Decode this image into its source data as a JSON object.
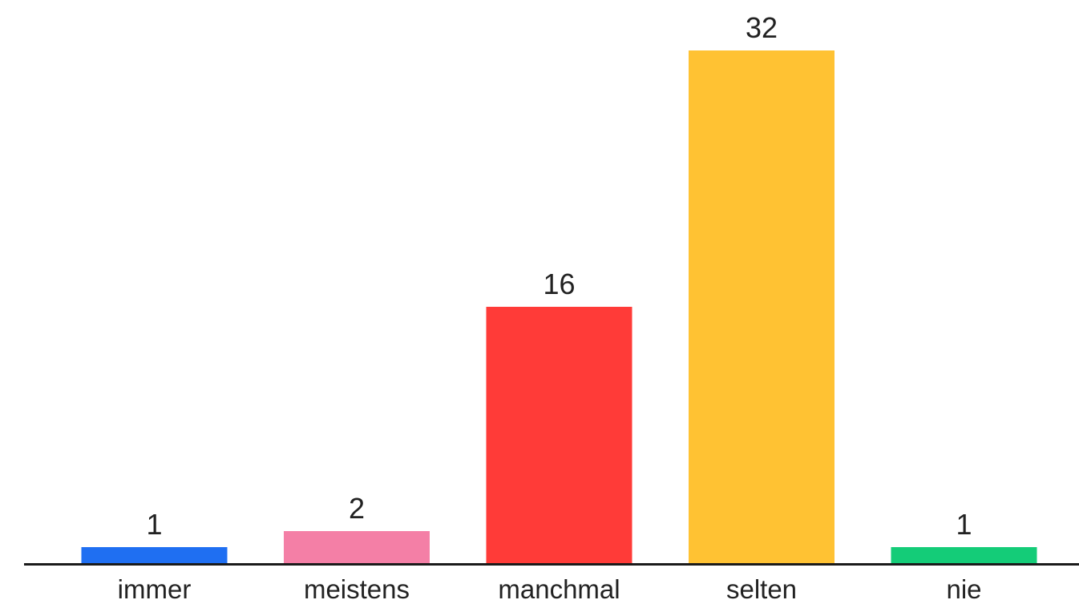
{
  "chart_data": {
    "type": "bar",
    "categories": [
      "immer",
      "meistens",
      "manchmal",
      "selten",
      "nie"
    ],
    "values": [
      1,
      2,
      16,
      32,
      1
    ],
    "data_labels": [
      "1",
      "2",
      "16",
      "32",
      "1"
    ],
    "colors": [
      "#1F6FF2",
      "#F47FA6",
      "#FF3B38",
      "#FFC233",
      "#14CC78"
    ],
    "axis_color": "#1a1a1a",
    "grid": false,
    "legend": "none",
    "ylim": [
      0,
      32
    ]
  }
}
